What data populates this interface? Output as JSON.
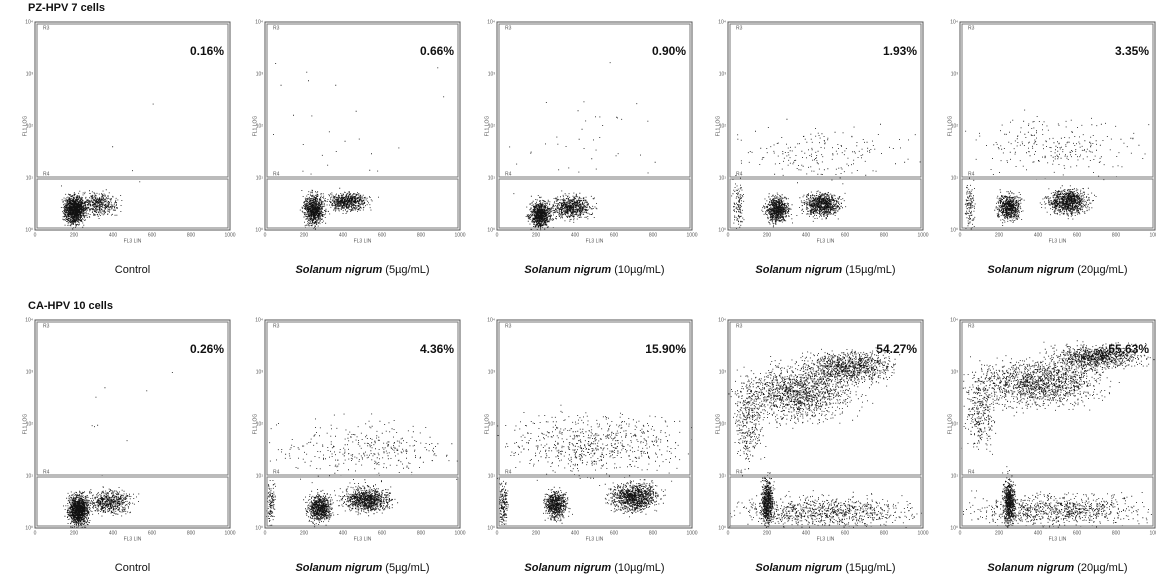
{
  "axis": {
    "x_label": "FL3 LIN",
    "y_label": "FL1 LOG",
    "x_ticks": [
      "0",
      "200",
      "400",
      "600",
      "800",
      "1000"
    ],
    "y_ticks": [
      "10⁰",
      "10¹",
      "10²",
      "10³",
      "10⁴"
    ],
    "gates": [
      "R3",
      "R4"
    ]
  },
  "rows": [
    {
      "title": "PZ-HPV 7 cells",
      "panels": [
        {
          "percent": "0.16%",
          "caption": {
            "name": "Control"
          }
        },
        {
          "percent": "0.66%",
          "caption": {
            "name": "Solanum nigrum",
            "dose": "(5µg/mL)"
          }
        },
        {
          "percent": "0.90%",
          "caption": {
            "name": "Solanum nigrum",
            "dose": "(10µg/mL)"
          }
        },
        {
          "percent": "1.93%",
          "caption": {
            "name": "Solanum nigrum",
            "dose": "(15µg/mL)"
          }
        },
        {
          "percent": "3.35%",
          "caption": {
            "name": "Solanum nigrum",
            "dose": "(20µg/mL)"
          }
        }
      ]
    },
    {
      "title": "CA-HPV 10 cells",
      "panels": [
        {
          "percent": "0.26%",
          "caption": {
            "name": "Control"
          }
        },
        {
          "percent": "4.36%",
          "caption": {
            "name": "Solanum nigrum",
            "dose": "(5µg/mL)"
          }
        },
        {
          "percent": "15.90%",
          "caption": {
            "name": "Solanum nigrum",
            "dose": "(10µg/mL)"
          }
        },
        {
          "percent": "54.27%",
          "caption": {
            "name": "Solanum nigrum",
            "dose": "(15µg/mL)"
          }
        },
        {
          "percent": "55.63%",
          "caption": {
            "name": "Solanum nigrum",
            "dose": "(20µg/mL)"
          }
        }
      ]
    }
  ]
}
